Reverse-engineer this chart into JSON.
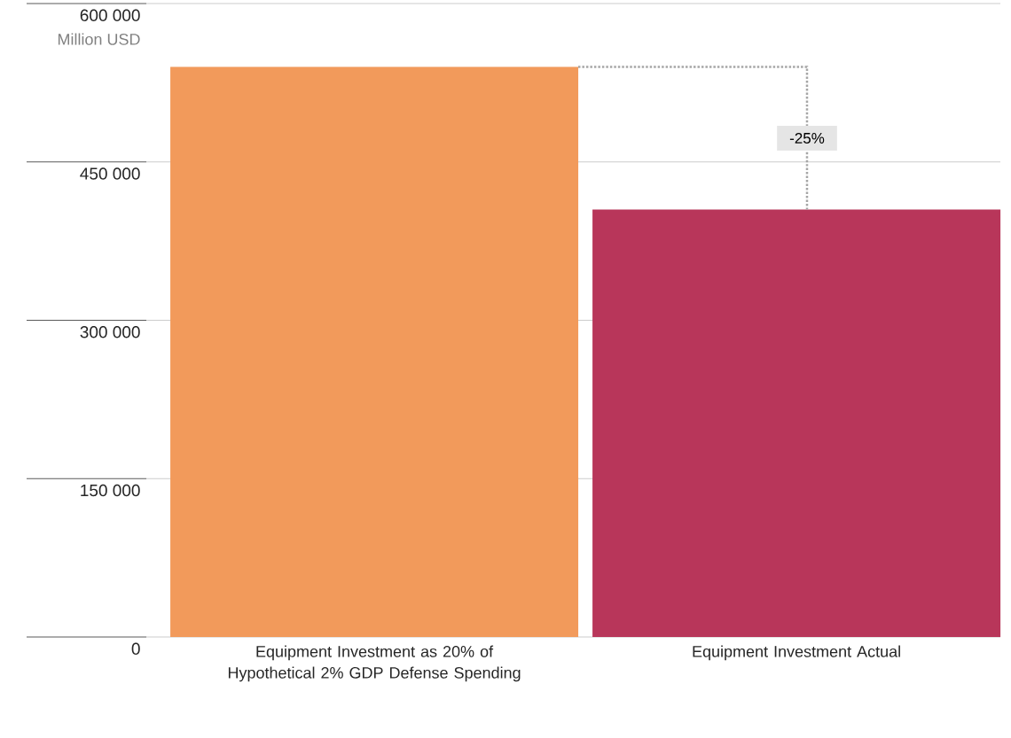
{
  "chart_data": {
    "type": "bar",
    "ylabel": "Million USD",
    "categories": [
      "Equipment Investment as 20% of Hypothetical 2% GDP Defense Spending",
      "Equipment Investment Actual"
    ],
    "values": [
      540000,
      405000
    ],
    "colors": [
      "#f29a5b",
      "#b8365a"
    ],
    "ylim": [
      0,
      600000
    ],
    "yticks": [
      {
        "value": 0,
        "label": "0"
      },
      {
        "value": 150000,
        "label": "150 000"
      },
      {
        "value": 300000,
        "label": "300 000"
      },
      {
        "value": 450000,
        "label": "450 000"
      },
      {
        "value": 600000,
        "label": "600 000"
      }
    ],
    "grid": "y",
    "annotations": [
      "-25%"
    ]
  }
}
